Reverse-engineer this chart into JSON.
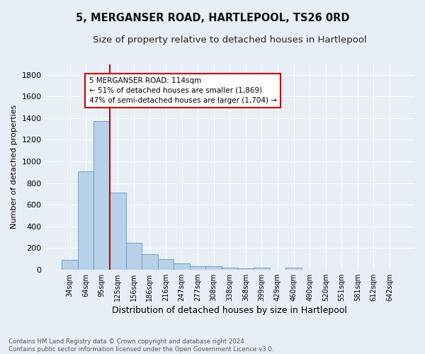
{
  "title": "5, MERGANSER ROAD, HARTLEPOOL, TS26 0RD",
  "subtitle": "Size of property relative to detached houses in Hartlepool",
  "xlabel": "Distribution of detached houses by size in Hartlepool",
  "ylabel": "Number of detached properties",
  "footnote1": "Contains HM Land Registry data © Crown copyright and database right 2024.",
  "footnote2": "Contains public sector information licensed under the Open Government Licence v3.0.",
  "bar_labels": [
    "34sqm",
    "64sqm",
    "95sqm",
    "125sqm",
    "156sqm",
    "186sqm",
    "216sqm",
    "247sqm",
    "277sqm",
    "308sqm",
    "338sqm",
    "368sqm",
    "399sqm",
    "429sqm",
    "460sqm",
    "490sqm",
    "520sqm",
    "551sqm",
    "581sqm",
    "612sqm",
    "642sqm"
  ],
  "bar_values": [
    90,
    910,
    1370,
    710,
    248,
    145,
    95,
    55,
    28,
    30,
    18,
    12,
    15,
    0,
    20,
    0,
    0,
    0,
    0,
    0,
    0
  ],
  "bar_color": "#b8d0e8",
  "bar_edge_color": "#6699bb",
  "vline_color": "#cc0000",
  "annotation_line1": "5 MERGANSER ROAD: 114sqm",
  "annotation_line2": "← 51% of detached houses are smaller (1,869)",
  "annotation_line3": "47% of semi-detached houses are larger (1,704) →",
  "annotation_box_color": "#ffffff",
  "annotation_box_edge": "#cc0000",
  "ylim": [
    0,
    1900
  ],
  "yticks": [
    0,
    200,
    400,
    600,
    800,
    1000,
    1200,
    1400,
    1600,
    1800
  ],
  "bg_color": "#e8eef5",
  "plot_bg_color": "#e8eef5",
  "title_fontsize": 10.5,
  "subtitle_fontsize": 9.5,
  "ylabel_fontsize": 8,
  "xlabel_fontsize": 9
}
